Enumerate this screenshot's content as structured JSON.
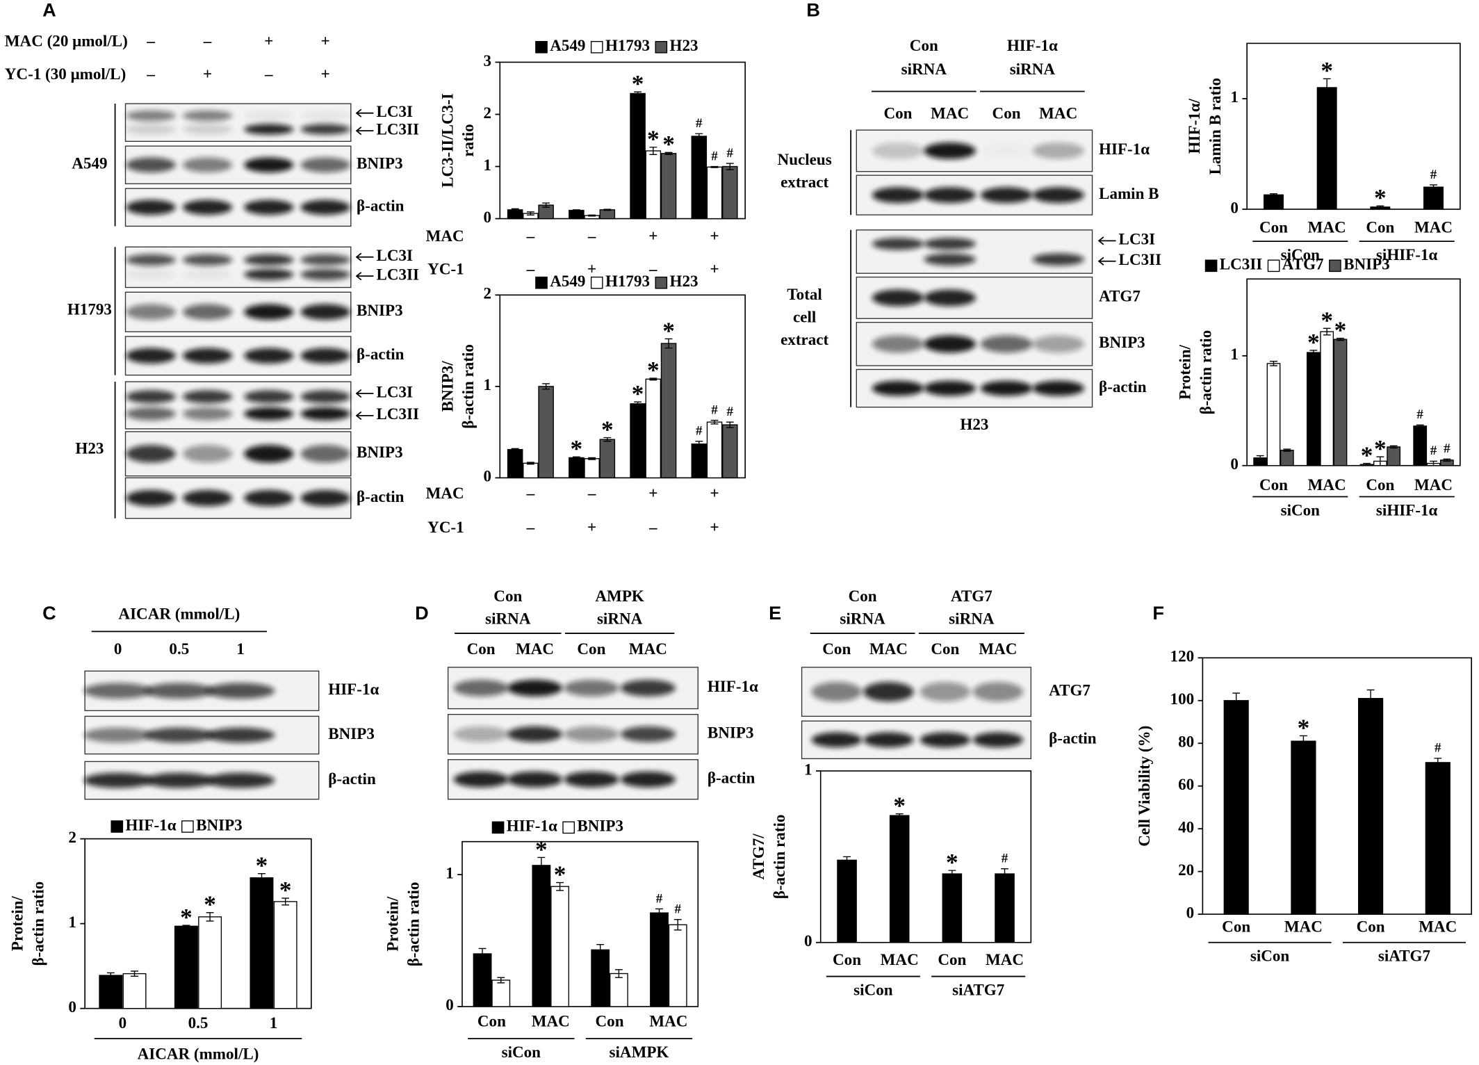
{
  "panel_letters": [
    "A",
    "B",
    "C",
    "D",
    "E",
    "F"
  ],
  "blots": [
    {
      "conditions": [
        {
          "name": "MAC (20 μmol/L)",
          "values": [
            "–",
            "–",
            "+",
            "+"
          ]
        },
        {
          "name": "YC-1 (30 μmol/L)",
          "values": [
            "–",
            "+",
            "–",
            "+"
          ]
        }
      ],
      "sections": [
        {
          "name": [
            "A549"
          ],
          "rows": [
            [
              "LC3I",
              "LC3II"
            ],
            [
              "BNIP3"
            ],
            [
              "β-actin"
            ]
          ]
        },
        {
          "name": [
            "H1793"
          ],
          "rows": [
            [
              "LC3I",
              "LC3II"
            ],
            [
              "BNIP3"
            ],
            [
              "β-actin"
            ]
          ]
        },
        {
          "name": [
            "H23"
          ],
          "rows": [
            [
              "LC3I",
              "LC3II"
            ],
            [
              "BNIP3"
            ],
            [
              "β-actin"
            ]
          ]
        }
      ]
    },
    {
      "headers": [
        [
          "Con",
          "siRNA"
        ],
        [
          "HIF-1α",
          "siRNA"
        ]
      ],
      "lanes": [
        "Con",
        "MAC",
        "Con",
        "MAC"
      ],
      "sections": [
        {
          "name": [
            "Nucleus",
            "extract"
          ],
          "rows": [
            [
              "HIF-1α"
            ],
            [
              "Lamin B"
            ]
          ]
        },
        {
          "name": [
            "Total",
            "cell",
            "extract"
          ],
          "rows": [
            [
              "LC3I",
              "LC3II"
            ],
            [
              "ATG7"
            ],
            [
              "BNIP3"
            ],
            [
              "β-actin"
            ]
          ]
        }
      ],
      "footer": "H23"
    },
    {
      "headers": [
        [
          "AICAR (mmol/L)"
        ]
      ],
      "lanes": [
        "0",
        "0.5",
        "1"
      ],
      "sections": [
        {
          "name": null,
          "rows": [
            [
              "HIF-1α"
            ],
            [
              "BNIP3"
            ],
            [
              "β-actin"
            ]
          ]
        }
      ]
    },
    {
      "headers": [
        [
          "Con",
          "siRNA"
        ],
        [
          "AMPK",
          "siRNA"
        ]
      ],
      "lanes": [
        "Con",
        "MAC",
        "Con",
        "MAC"
      ],
      "sections": [
        {
          "name": null,
          "rows": [
            [
              "HIF-1α"
            ],
            [
              "BNIP3"
            ],
            [
              "β-actin"
            ]
          ]
        }
      ]
    },
    {
      "headers": [
        [
          "Con",
          "siRNA"
        ],
        [
          "ATG7",
          "siRNA"
        ]
      ],
      "lanes": [
        "Con",
        "MAC",
        "Con",
        "MAC"
      ],
      "sections": [
        {
          "name": null,
          "rows": [
            [
              "ATG7"
            ],
            [
              "β-actin"
            ]
          ]
        }
      ]
    }
  ],
  "chart_data": [
    {
      "type": "bar",
      "ylabel": [
        "LC3-II/LC3-I",
        "ratio"
      ],
      "ylim": [
        0,
        3
      ],
      "yticks": [
        0,
        1,
        2,
        3
      ],
      "categories": [
        null,
        null,
        null,
        null
      ],
      "conditions": [
        {
          "name": "MAC",
          "values": [
            "–",
            "–",
            "+",
            "+"
          ]
        },
        {
          "name": "YC-1",
          "values": [
            "–",
            "+",
            "–",
            "+"
          ]
        }
      ],
      "legend": true,
      "series": [
        {
          "name": "A549",
          "color": "#000000",
          "values": [
            0.17,
            0.16,
            2.4,
            1.58
          ],
          "errors": [
            0.02,
            0.01,
            0.03,
            0.05
          ],
          "annotations": [
            null,
            null,
            "*",
            "#"
          ]
        },
        {
          "name": "H1793",
          "color": "#ffffff",
          "values": [
            0.1,
            0.06,
            1.3,
            0.99
          ],
          "errors": [
            0.03,
            0.01,
            0.07,
            0.01
          ],
          "annotations": [
            null,
            null,
            "*",
            "#"
          ]
        },
        {
          "name": "H23",
          "color": "#555555",
          "values": [
            0.26,
            0.17,
            1.25,
            1.0
          ],
          "errors": [
            0.04,
            0.01,
            0.02,
            0.06
          ],
          "annotations": [
            null,
            null,
            "*",
            "#"
          ]
        }
      ]
    },
    {
      "type": "bar",
      "ylabel": [
        "BNIP3/",
        "β-actin ratio"
      ],
      "ylim": [
        0,
        2
      ],
      "yticks": [
        0,
        1,
        2
      ],
      "categories": [
        null,
        null,
        null,
        null
      ],
      "conditions": [
        {
          "name": "MAC",
          "values": [
            "–",
            "–",
            "+",
            "+"
          ]
        },
        {
          "name": "YC-1",
          "values": [
            "–",
            "+",
            "–",
            "+"
          ]
        }
      ],
      "legend": true,
      "series": [
        {
          "name": "A549",
          "color": "#000000",
          "values": [
            0.31,
            0.22,
            0.81,
            0.37
          ],
          "errors": [
            0.01,
            0.01,
            0.02,
            0.03
          ],
          "annotations": [
            null,
            "*",
            "*",
            "#"
          ]
        },
        {
          "name": "H1793",
          "color": "#ffffff",
          "values": [
            0.16,
            0.21,
            1.08,
            0.61
          ],
          "errors": [
            0.01,
            0.01,
            0.01,
            0.02
          ],
          "annotations": [
            null,
            null,
            "*",
            "#"
          ]
        },
        {
          "name": "H23",
          "color": "#555555",
          "values": [
            1.0,
            0.42,
            1.47,
            0.58
          ],
          "errors": [
            0.03,
            0.02,
            0.05,
            0.03
          ],
          "annotations": [
            null,
            "*",
            "*",
            "#"
          ]
        }
      ]
    },
    {
      "type": "bar",
      "ylabel": [
        "HIF-1α/",
        "Lamin B ratio"
      ],
      "ylim": [
        0,
        1.5
      ],
      "yticks": [
        0,
        1
      ],
      "categories": [
        "Con",
        "MAC",
        "Con",
        "MAC"
      ],
      "groups": [
        "siCon",
        "siHIF-1α"
      ],
      "legend": false,
      "series": [
        {
          "name": "HIF-1α",
          "color": "#000000",
          "values": [
            0.13,
            1.1,
            0.02,
            0.2
          ],
          "errors": [
            0.01,
            0.08,
            0.01,
            0.02
          ],
          "annotations": [
            null,
            "*",
            "*",
            "#"
          ]
        }
      ]
    },
    {
      "type": "bar",
      "ylabel": [
        "Protein/",
        "β-actin ratio"
      ],
      "ylim": [
        0,
        1.7
      ],
      "yticks": [
        0,
        1
      ],
      "categories": [
        "Con",
        "MAC",
        "Con",
        "MAC"
      ],
      "groups": [
        "siCon",
        "siHIF-1α"
      ],
      "legend": true,
      "series": [
        {
          "name": "LC3II",
          "color": "#000000",
          "values": [
            0.07,
            1.03,
            0.01,
            0.36
          ],
          "errors": [
            0.02,
            0.02,
            0.01,
            0.01
          ],
          "annotations": [
            null,
            "*",
            "*",
            "#"
          ]
        },
        {
          "name": "ATG7",
          "color": "#ffffff",
          "values": [
            0.93,
            1.22,
            0.04,
            0.02
          ],
          "errors": [
            0.02,
            0.03,
            0.04,
            0.02
          ],
          "annotations": [
            null,
            "*",
            "*",
            "#"
          ]
        },
        {
          "name": "BNIP3",
          "color": "#555555",
          "values": [
            0.14,
            1.15,
            0.17,
            0.05
          ],
          "errors": [
            0.01,
            0.01,
            0.01,
            0.01
          ],
          "annotations": [
            null,
            "*",
            null,
            "#"
          ]
        }
      ]
    },
    {
      "type": "bar",
      "ylabel": [
        "Protein/",
        "β-actin ratio"
      ],
      "ylim": [
        0,
        2
      ],
      "yticks": [
        0,
        1,
        2
      ],
      "categories": [
        "0",
        "0.5",
        "1"
      ],
      "xlabel": "AICAR (mmol/L)",
      "legend": true,
      "series": [
        {
          "name": "HIF-1α",
          "color": "#000000",
          "values": [
            0.39,
            0.97,
            1.54
          ],
          "errors": [
            0.03,
            0.01,
            0.05
          ],
          "annotations": [
            null,
            "*",
            "*"
          ]
        },
        {
          "name": "BNIP3",
          "color": "#ffffff",
          "values": [
            0.41,
            1.08,
            1.26
          ],
          "errors": [
            0.03,
            0.05,
            0.04
          ],
          "annotations": [
            null,
            "*",
            "*"
          ]
        }
      ]
    },
    {
      "type": "bar",
      "ylabel": [
        "Protein/",
        "β-actin ratio"
      ],
      "ylim": [
        0,
        1.25
      ],
      "yticks": [
        0,
        1
      ],
      "categories": [
        "Con",
        "MAC",
        "Con",
        "MAC"
      ],
      "groups": [
        "siCon",
        "siAMPK"
      ],
      "legend": true,
      "series": [
        {
          "name": "HIF-1α",
          "color": "#000000",
          "values": [
            0.4,
            1.07,
            0.43,
            0.71
          ],
          "errors": [
            0.04,
            0.06,
            0.04,
            0.03
          ],
          "annotations": [
            null,
            "*",
            null,
            "#"
          ]
        },
        {
          "name": "BNIP3",
          "color": "#ffffff",
          "values": [
            0.2,
            0.91,
            0.25,
            0.62
          ],
          "errors": [
            0.02,
            0.03,
            0.03,
            0.04
          ],
          "annotations": [
            null,
            "*",
            null,
            "#"
          ]
        }
      ]
    },
    {
      "type": "bar",
      "ylabel": [
        "ATG7/",
        "β-actin ratio"
      ],
      "ylim": [
        0,
        1
      ],
      "yticks": [
        0,
        1
      ],
      "categories": [
        "Con",
        "MAC",
        "Con",
        "MAC"
      ],
      "groups": [
        "siCon",
        "siATG7"
      ],
      "legend": false,
      "series": [
        {
          "name": "ATG7",
          "color": "#000000",
          "values": [
            0.48,
            0.74,
            0.4,
            0.4
          ],
          "errors": [
            0.02,
            0.01,
            0.02,
            0.03
          ],
          "annotations": [
            null,
            "*",
            "*",
            "#"
          ]
        }
      ]
    },
    {
      "type": "bar",
      "ylabel": [
        "Cell Viability (%)"
      ],
      "ylim": [
        0,
        120
      ],
      "yticks": [
        0,
        20,
        40,
        60,
        80,
        100,
        120
      ],
      "categories": [
        "Con",
        "MAC",
        "Con",
        "MAC"
      ],
      "groups": [
        "siCon",
        "siATG7"
      ],
      "legend": false,
      "series": [
        {
          "name": "Cell viability",
          "color": "#000000",
          "values": [
            100,
            81,
            101,
            71
          ],
          "errors": [
            3.5,
            2.5,
            4,
            2
          ],
          "annotations": [
            null,
            "*",
            null,
            "#"
          ]
        }
      ]
    }
  ]
}
